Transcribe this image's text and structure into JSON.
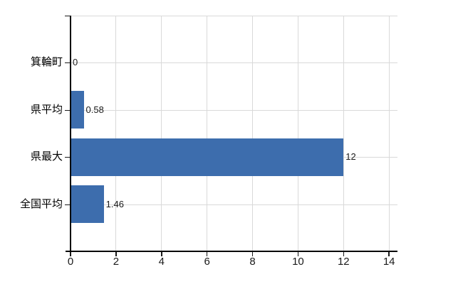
{
  "chart_data": {
    "type": "bar",
    "orientation": "horizontal",
    "title": "",
    "xlabel": "",
    "ylabel": "",
    "categories": [
      "箕輪町",
      "県平均",
      "県最大",
      "全国平均"
    ],
    "values": [
      0,
      0.58,
      12,
      1.46
    ],
    "value_labels": [
      "0",
      "0.58",
      "12",
      "1.46"
    ],
    "x_ticks": [
      0,
      2,
      4,
      6,
      8,
      10,
      12,
      14
    ],
    "x_tick_labels": [
      "0",
      "2",
      "4",
      "6",
      "8",
      "10",
      "12",
      "14"
    ],
    "xlim": [
      0,
      14.37
    ],
    "grid": true,
    "legend": false,
    "colors": {
      "bar": "#3d6dad",
      "grid": "#d9d9d9",
      "axis": "#000000",
      "text": "#1a1a1a",
      "background": "#ffffff"
    }
  }
}
